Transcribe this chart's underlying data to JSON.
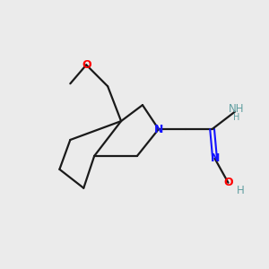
{
  "background_color": "#ebebeb",
  "bond_color": "#1a1a1a",
  "N_color": "#1414ff",
  "O_color": "#ff0000",
  "NH_color": "#5f9ea0",
  "figsize": [
    3.0,
    3.0
  ],
  "dpi": 100,
  "xlim": [
    0,
    10
  ],
  "ylim": [
    0,
    10
  ]
}
